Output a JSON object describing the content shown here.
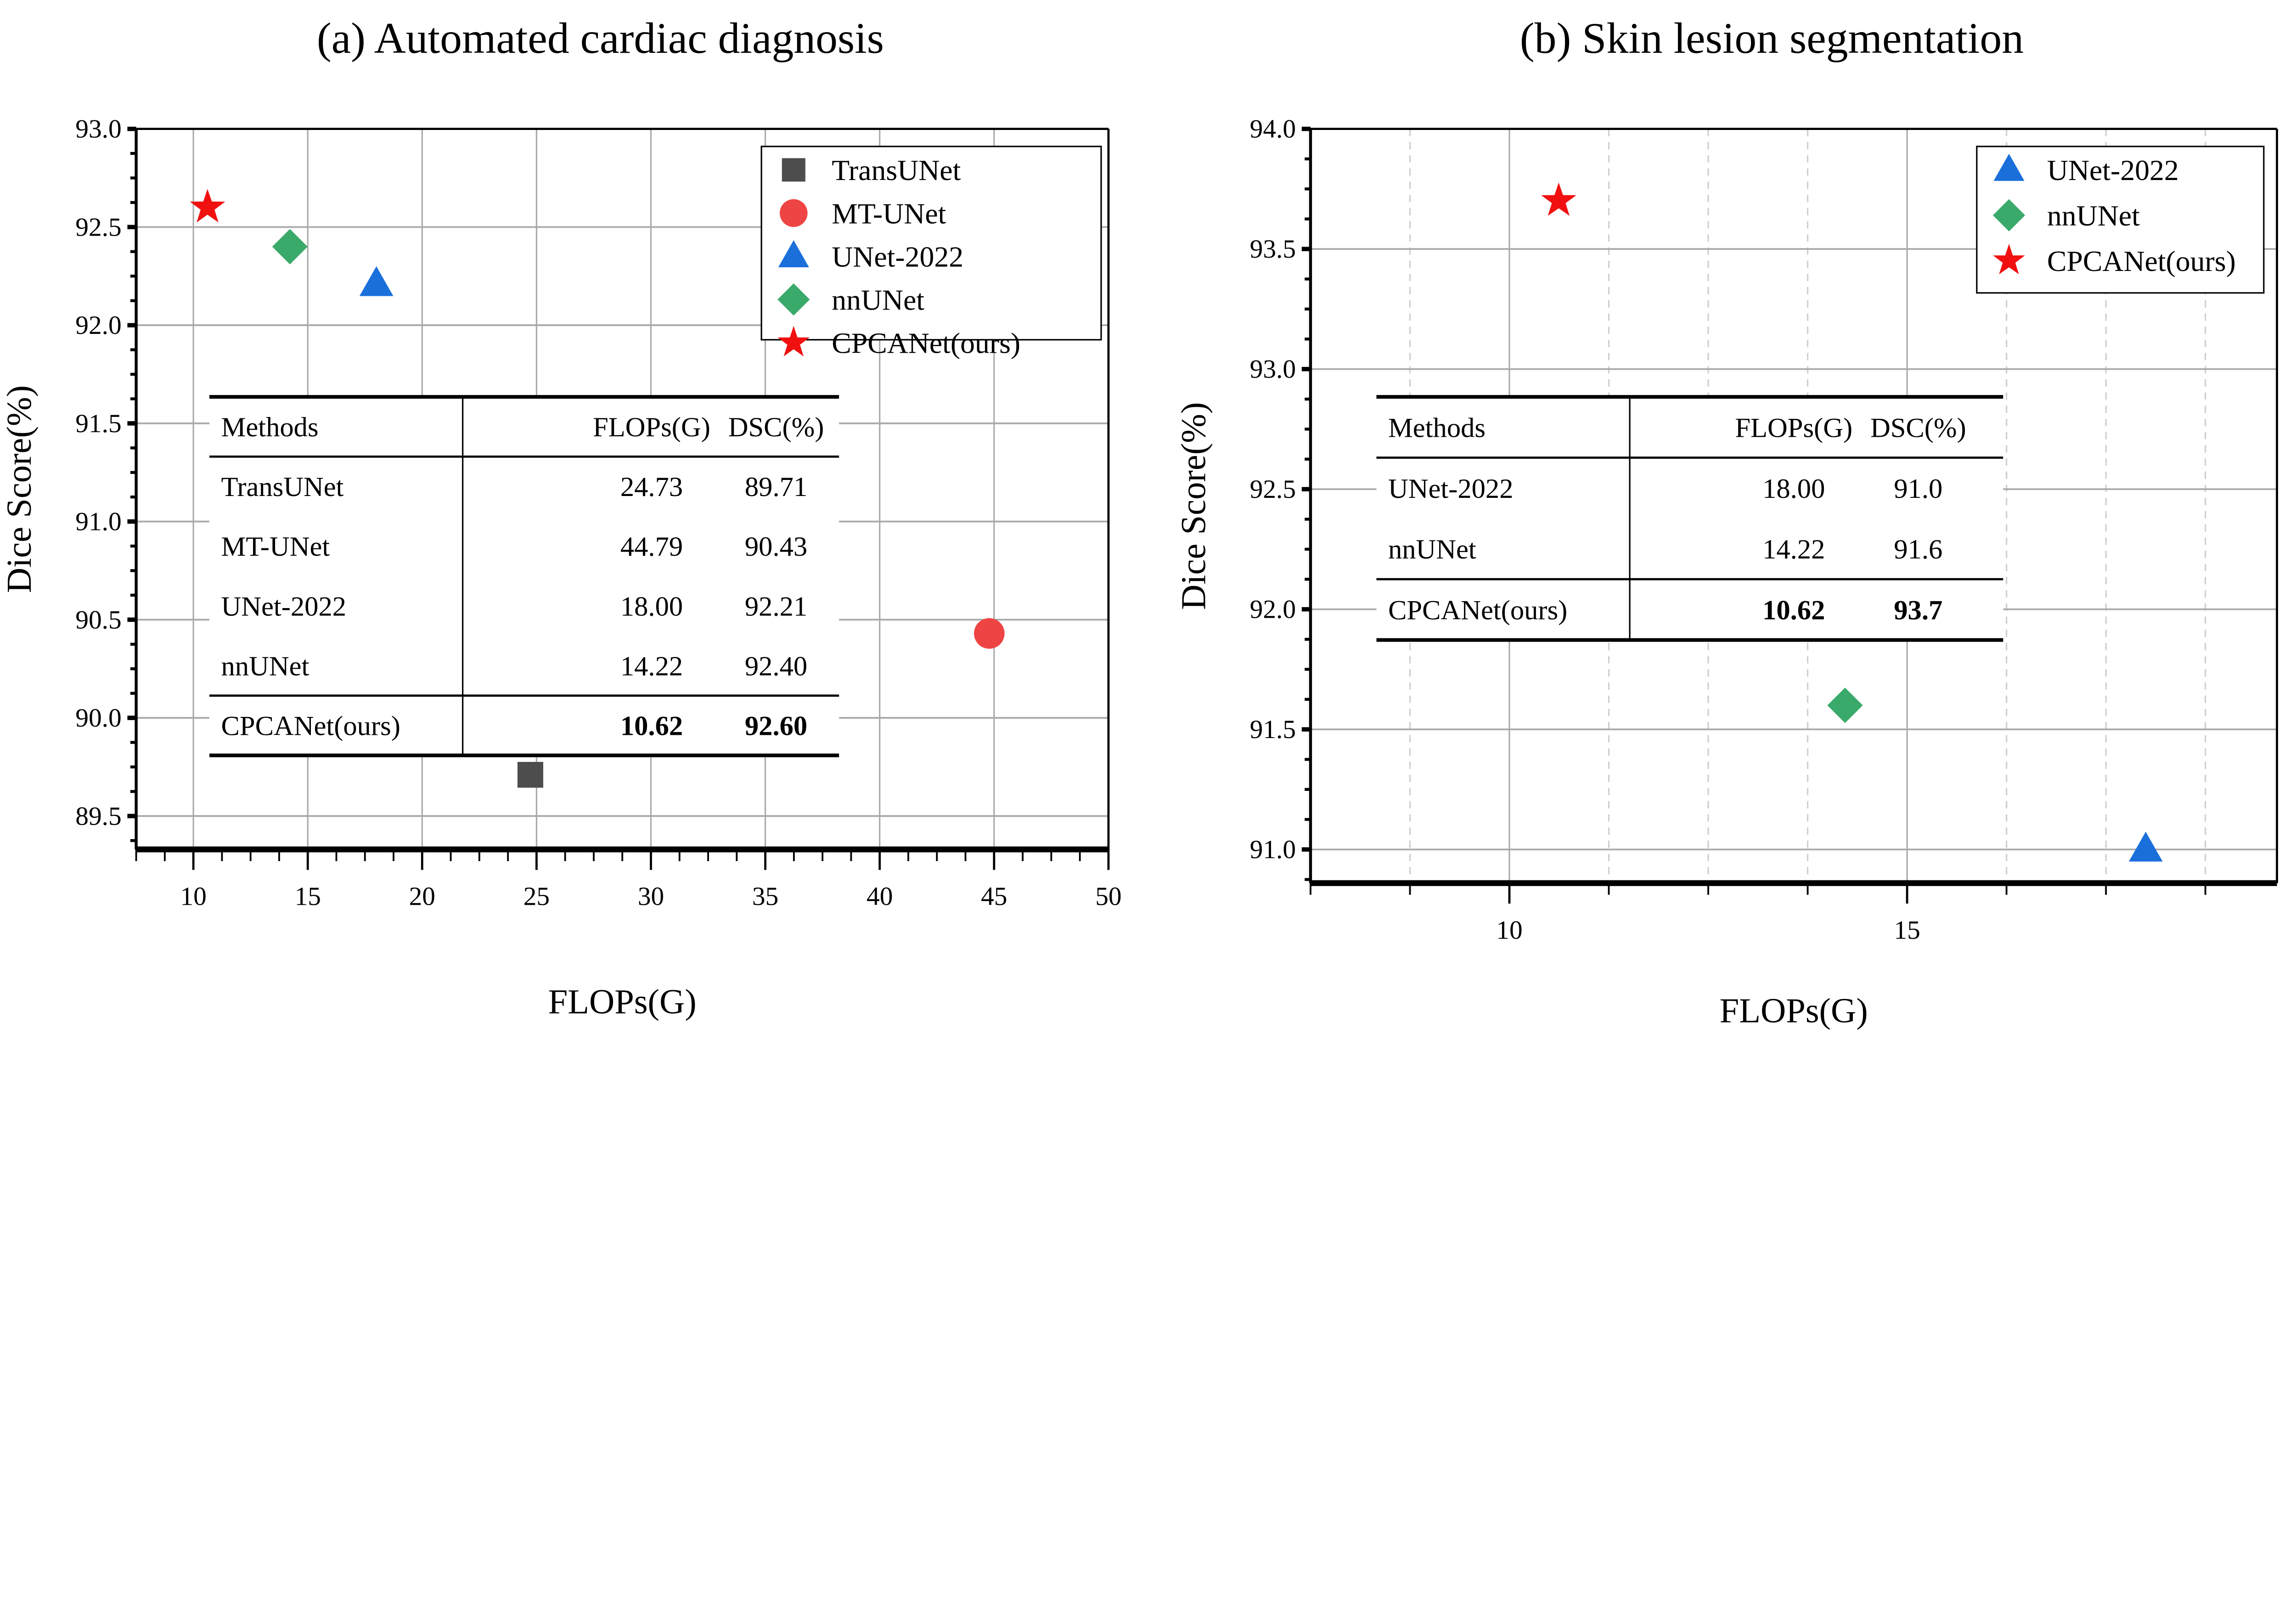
{
  "chart_data": [
    {
      "type": "scatter",
      "title": "(a) Automated cardiac diagnosis",
      "xlabel": "FLOPs(G)",
      "ylabel": "Dice Score(%)",
      "xlim": [
        7.5,
        50
      ],
      "ylim": [
        89.33,
        93.0
      ],
      "xticks": [
        "10",
        "15",
        "20",
        "25",
        "30",
        "35",
        "40",
        "45",
        "50"
      ],
      "yticks": [
        "89.5",
        "90.0",
        "90.5",
        "91.0",
        "91.5",
        "92.0",
        "92.5",
        "93.0"
      ],
      "grid": true,
      "legend_position": "top-right",
      "series": [
        {
          "name": "TransUNet",
          "x": 24.73,
          "y": 89.71,
          "marker": "square",
          "color": "#4d4d4d"
        },
        {
          "name": "MT-UNet",
          "x": 44.79,
          "y": 90.43,
          "marker": "circle",
          "color": "#ef4444"
        },
        {
          "name": "UNet-2022",
          "x": 18.0,
          "y": 92.21,
          "marker": "triangle",
          "color": "#1a6fdb"
        },
        {
          "name": "nnUNet",
          "x": 14.22,
          "y": 92.4,
          "marker": "diamond",
          "color": "#3aaa6a"
        },
        {
          "name": "CPCANet(ours)",
          "x": 10.62,
          "y": 92.6,
          "marker": "star",
          "color": "#f01010"
        }
      ],
      "table": {
        "headers": [
          "Methods",
          "FLOPs(G)",
          "DSC(%)"
        ],
        "rows": [
          [
            "TransUNet",
            "24.73",
            "89.71"
          ],
          [
            "MT-UNet",
            "44.79",
            "90.43"
          ],
          [
            "UNet-2022",
            "18.00",
            "92.21"
          ],
          [
            "nnUNet",
            "14.22",
            "92.40"
          ],
          [
            "CPCANet(ours)",
            "10.62",
            "92.60"
          ]
        ]
      }
    },
    {
      "type": "scatter",
      "title": "(b) Skin lesion segmentation",
      "xlabel": "FLOPs(G)",
      "ylabel": "Dice Score(%)",
      "xlim": [
        7.5,
        19.65
      ],
      "ylim": [
        90.86,
        94.0
      ],
      "xticks": [
        "10",
        "15"
      ],
      "yticks": [
        "91.0",
        "91.5",
        "92.0",
        "92.5",
        "93.0",
        "93.5",
        "94.0"
      ],
      "grid": true,
      "legend_position": "top-right",
      "series": [
        {
          "name": "UNet-2022",
          "x": 18.0,
          "y": 91.0,
          "marker": "triangle",
          "color": "#1a6fdb"
        },
        {
          "name": "nnUNet",
          "x": 14.22,
          "y": 91.6,
          "marker": "diamond",
          "color": "#3aaa6a"
        },
        {
          "name": "CPCANet(ours)",
          "x": 10.62,
          "y": 93.7,
          "marker": "star",
          "color": "#f01010"
        }
      ],
      "table": {
        "headers": [
          "Methods",
          "FLOPs(G)",
          "DSC(%)"
        ],
        "rows": [
          [
            "UNet-2022",
            "18.00",
            "91.0"
          ],
          [
            "nnUNet",
            "14.22",
            "91.6"
          ],
          [
            "CPCANet(ours)",
            "10.62",
            "93.7"
          ]
        ]
      }
    }
  ]
}
